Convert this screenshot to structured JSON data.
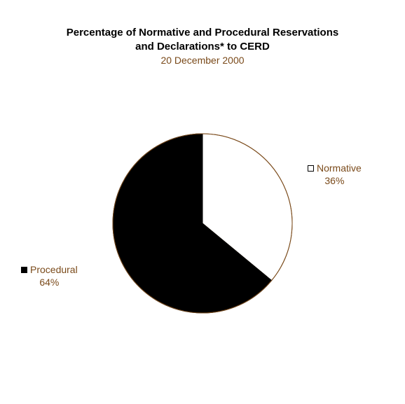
{
  "chart_data": {
    "type": "pie",
    "title_lines": [
      "Percentage of Normative and Procedural Reservations",
      "and Declarations* to CERD"
    ],
    "subtitle": "20 December 2000",
    "slices": [
      {
        "label": "Normative",
        "value": 36,
        "value_label": "36%",
        "color": "#ffffff"
      },
      {
        "label": "Procedural",
        "value": 64,
        "value_label": "64%",
        "color": "#000000"
      }
    ],
    "start_angle": "12 o'clock",
    "direction": "clockwise",
    "outline_color": "#7a4a1a",
    "legend_placement": "beside slices"
  }
}
